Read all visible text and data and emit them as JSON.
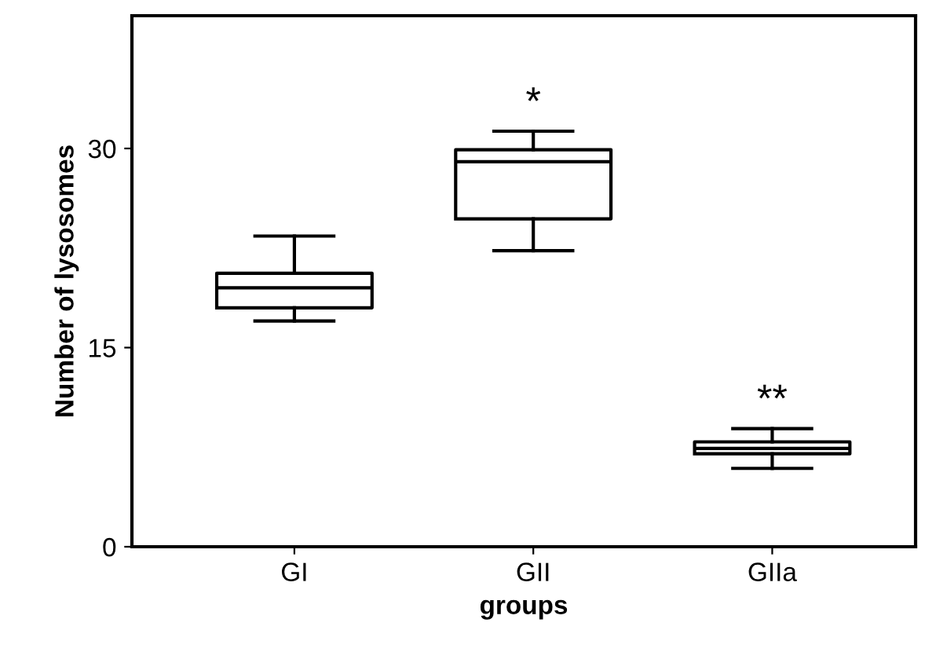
{
  "chart_data": {
    "type": "box",
    "xlabel": "groups",
    "ylabel": "Number of lysosomes",
    "categories": [
      "GI",
      "GII",
      "GIIa"
    ],
    "boxes": [
      {
        "low": 17.0,
        "q1": 18.0,
        "median": 19.5,
        "q3": 20.6,
        "high": 23.4
      },
      {
        "low": 22.3,
        "q1": 24.7,
        "median": 29.0,
        "q3": 29.9,
        "high": 31.3
      },
      {
        "low": 5.9,
        "q1": 7.0,
        "median": 7.4,
        "q3": 7.9,
        "high": 8.9
      }
    ],
    "ylim": [
      0,
      40
    ],
    "yticks": [
      0,
      15,
      30
    ],
    "grid": false,
    "annotations": [
      "*",
      "**"
    ]
  }
}
